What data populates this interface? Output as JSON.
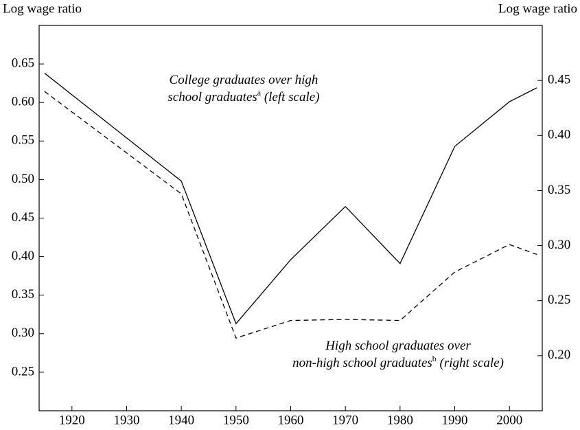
{
  "chart_data": {
    "type": "line",
    "y_label": "Log wage ratio",
    "y2_label": "Log wage ratio",
    "x": [
      1915,
      1940,
      1950,
      1960,
      1970,
      1980,
      1990,
      2000,
      2005
    ],
    "series": [
      {
        "name": "College graduates over high school graduates (left scale)",
        "color": "#000000",
        "linestyle": "solid",
        "axis": "y",
        "values": [
          0.638,
          0.498,
          0.313,
          0.396,
          0.465,
          0.391,
          0.543,
          0.601,
          0.619
        ]
      },
      {
        "name": "High school graduates over non-high school graduates (right scale)",
        "color": "#000000",
        "linestyle": "dashed",
        "axis": "y2",
        "values": [
          0.44,
          0.347,
          0.216,
          0.232,
          0.233,
          0.232,
          0.276,
          0.301,
          0.292
        ]
      }
    ],
    "xlim": [
      1914,
      2006
    ],
    "xticks": [
      1920,
      1930,
      1940,
      1950,
      1960,
      1970,
      1980,
      1990,
      2000
    ],
    "ylim": [
      0.2,
      0.7
    ],
    "yticks": [
      0.25,
      {
        "value": 0.3,
        "label": "0.30"
      },
      0.35,
      {
        "value": 0.4,
        "label": "0.40"
      },
      0.45,
      {
        "value": 0.5,
        "label": "0.50"
      },
      0.55,
      {
        "value": 0.6,
        "label": "0.60"
      },
      0.65
    ],
    "y2lim": [
      0.15,
      0.5
    ],
    "y2ticks": [
      {
        "value": 0.2,
        "label": "0.20"
      },
      0.25,
      {
        "value": 0.3,
        "label": "0.30"
      },
      0.35,
      {
        "value": 0.4,
        "label": "0.40"
      },
      0.45
    ],
    "annotations": [
      {
        "lines": [
          "College graduates over high",
          "school graduates"
        ],
        "sup": "a",
        "rest": " (left scale)"
      },
      {
        "lines": [
          "High school graduates over",
          "non-high school graduates"
        ],
        "sup": "b",
        "rest": " (right scale)"
      }
    ]
  }
}
